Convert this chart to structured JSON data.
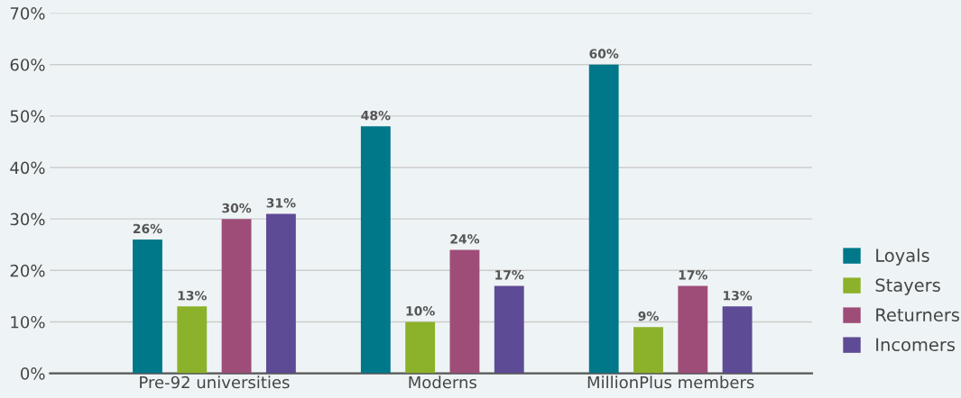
{
  "chart_data": {
    "type": "bar",
    "categories": [
      "Pre-92 universities",
      "Moderns",
      "MillionPlus members"
    ],
    "series": [
      {
        "name": "Loyals",
        "color": "#00788a",
        "values": [
          26,
          48,
          60
        ],
        "value_labels": [
          "26%",
          "48%",
          "60%"
        ]
      },
      {
        "name": "Stayers",
        "color": "#8cb12a",
        "values": [
          13,
          10,
          9
        ],
        "value_labels": [
          "13%",
          "10%",
          "9%"
        ]
      },
      {
        "name": "Returners",
        "color": "#9e4d78",
        "values": [
          30,
          24,
          17
        ],
        "value_labels": [
          "30%",
          "24%",
          "17%"
        ]
      },
      {
        "name": "Incomers",
        "color": "#5e4b96",
        "values": [
          31,
          17,
          13
        ],
        "value_labels": [
          "31%",
          "17%",
          "13%"
        ]
      }
    ],
    "ylim": [
      0,
      70
    ],
    "yticks": [
      {
        "value": 0,
        "label": "0%"
      },
      {
        "value": 10,
        "label": "10%"
      },
      {
        "value": 20,
        "label": "20%"
      },
      {
        "value": 30,
        "label": "30%"
      },
      {
        "value": 40,
        "label": "40%"
      },
      {
        "value": 50,
        "label": "50%"
      },
      {
        "value": 60,
        "label": "60%"
      },
      {
        "value": 70,
        "label": "70%"
      }
    ],
    "grid": "y",
    "legend": "right"
  }
}
